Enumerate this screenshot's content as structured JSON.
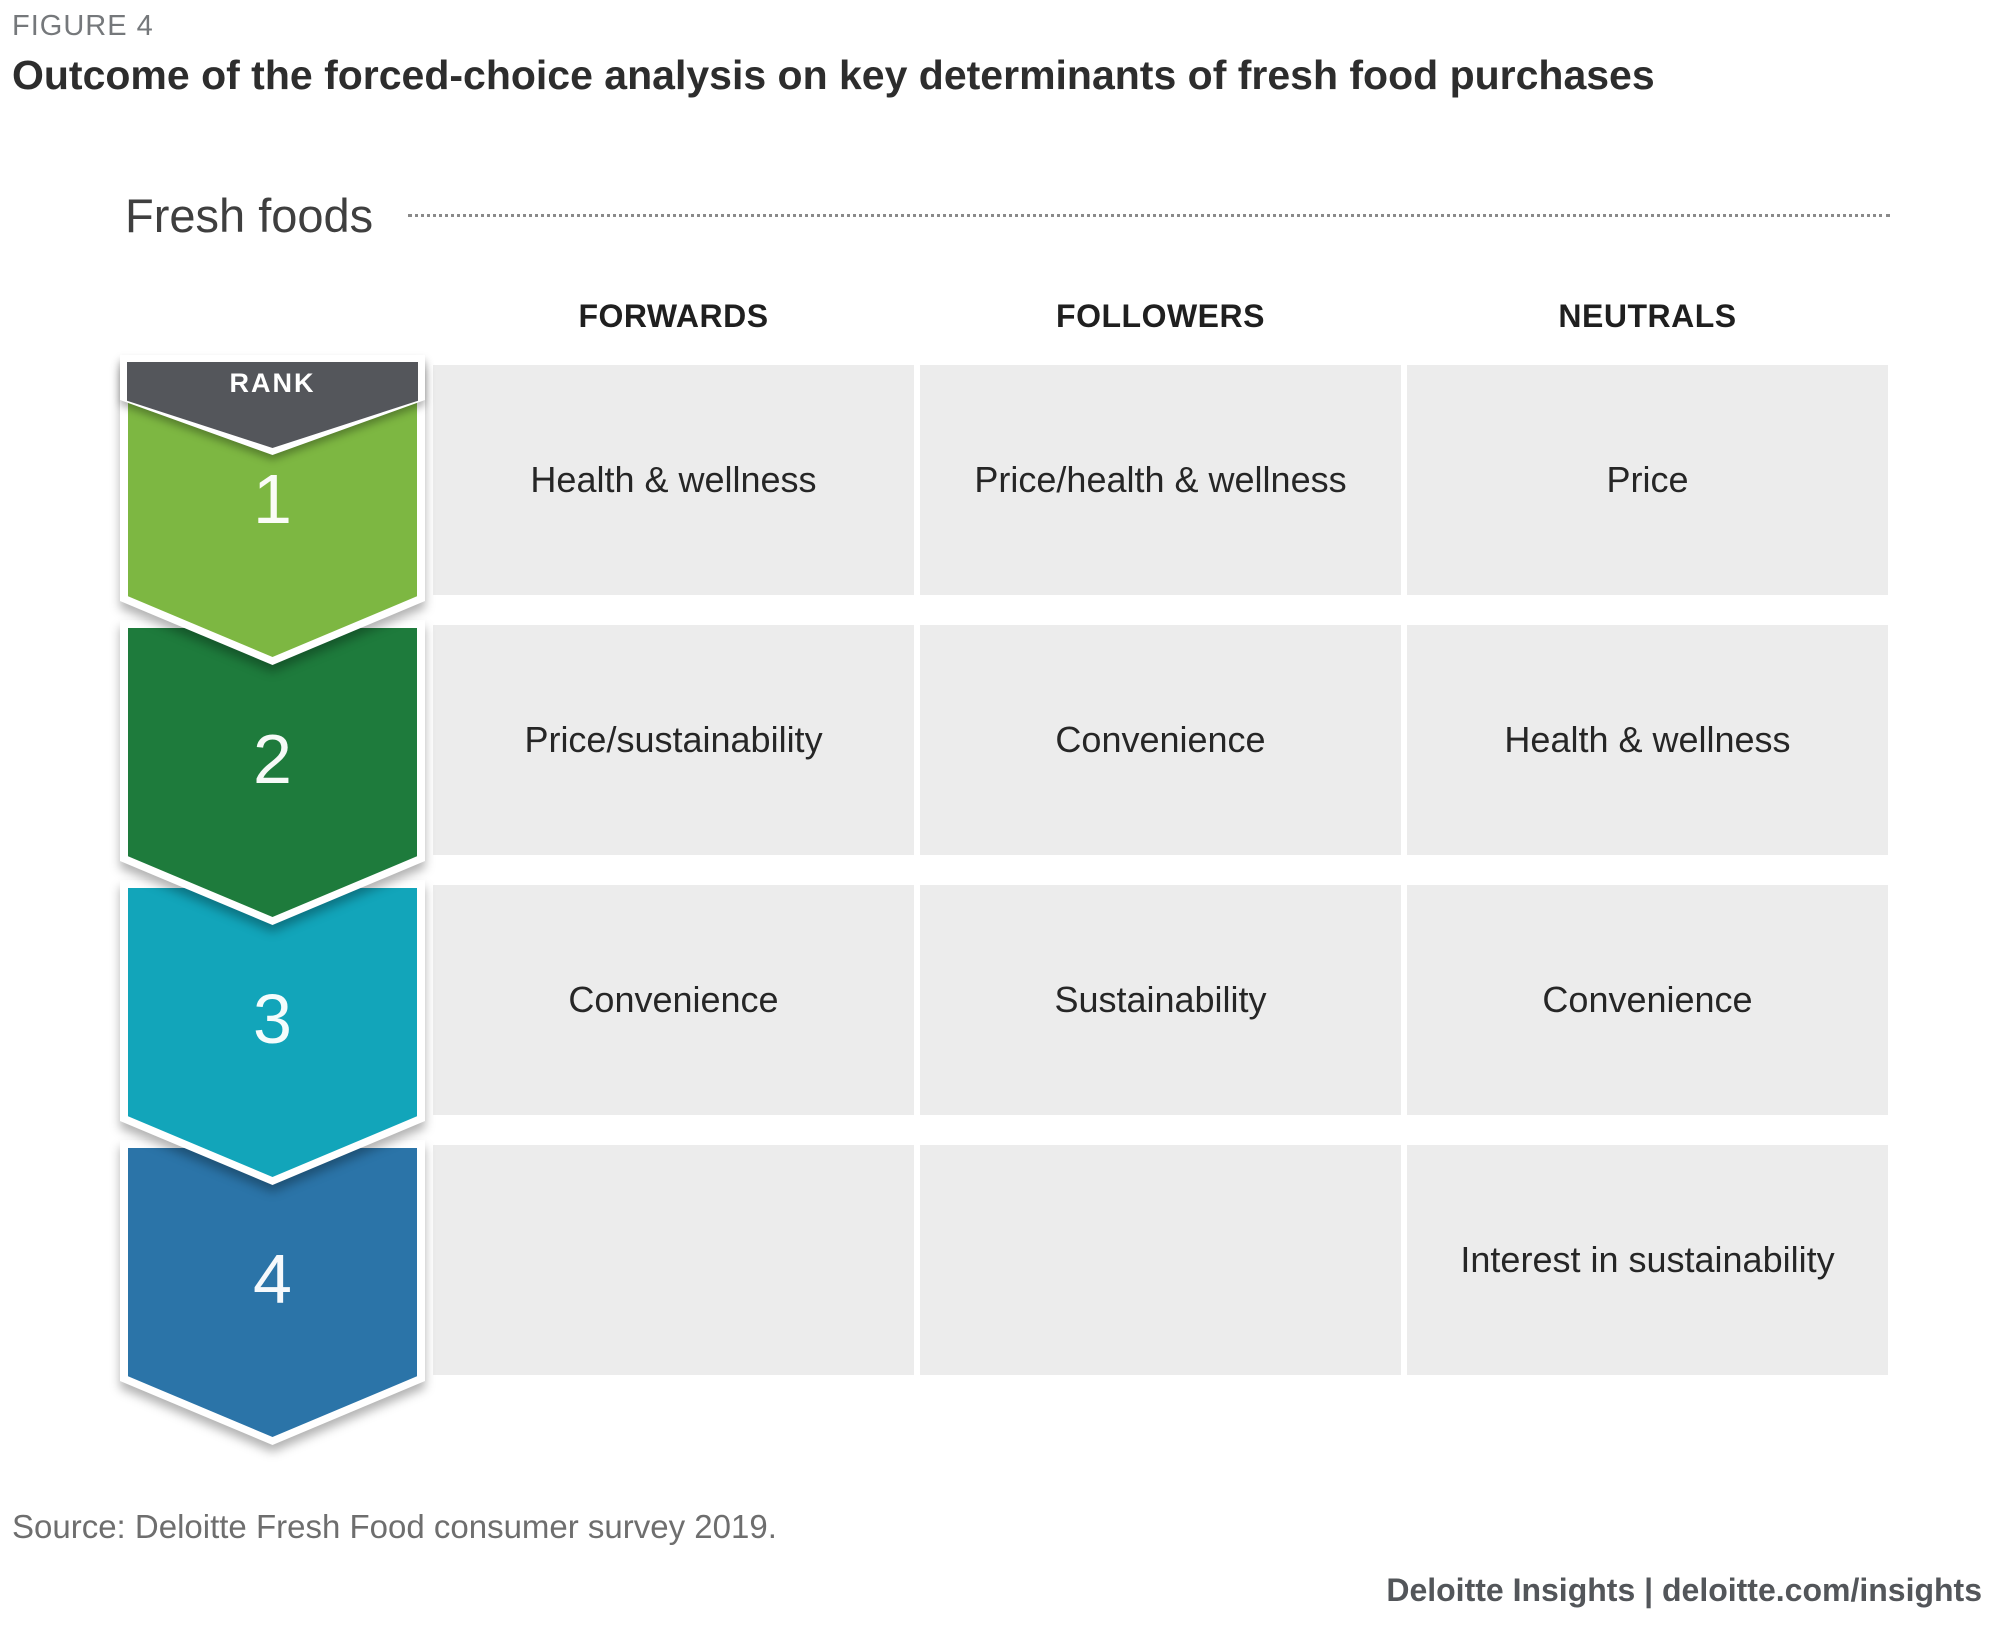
{
  "figure": {
    "eyebrow": "FIGURE 4",
    "title": "Outcome of the forced-choice analysis on key determinants of fresh food purchases",
    "section_label": "Fresh foods",
    "source": "Source: Deloitte Fresh Food consumer survey 2019.",
    "brand": "Deloitte Insights | deloitte.com/insights"
  },
  "colors": {
    "rank_badge": "#54565B",
    "rank_1": "#7DB742",
    "rank_2": "#1E7B3C",
    "rank_3": "#12A5BA",
    "rank_4": "#2B74A8",
    "cell_background": "#ECECEC"
  },
  "chart_data": {
    "type": "table",
    "title": "Outcome of the forced-choice analysis on key determinants of fresh food purchases",
    "section": "Fresh foods",
    "rank_column_label": "RANK",
    "columns": [
      "FORWARDS",
      "FOLLOWERS",
      "NEUTRALS"
    ],
    "rows": [
      {
        "rank": "1",
        "cells": [
          "Health & wellness",
          "Price/health & wellness",
          "Price"
        ]
      },
      {
        "rank": "2",
        "cells": [
          "Price/sustainability",
          "Convenience",
          "Health & wellness"
        ]
      },
      {
        "rank": "3",
        "cells": [
          "Convenience",
          "Sustainability",
          "Convenience"
        ]
      },
      {
        "rank": "4",
        "cells": [
          "",
          "",
          "Interest in sustainability"
        ]
      }
    ],
    "source": "Source: Deloitte Fresh Food consumer survey 2019."
  }
}
